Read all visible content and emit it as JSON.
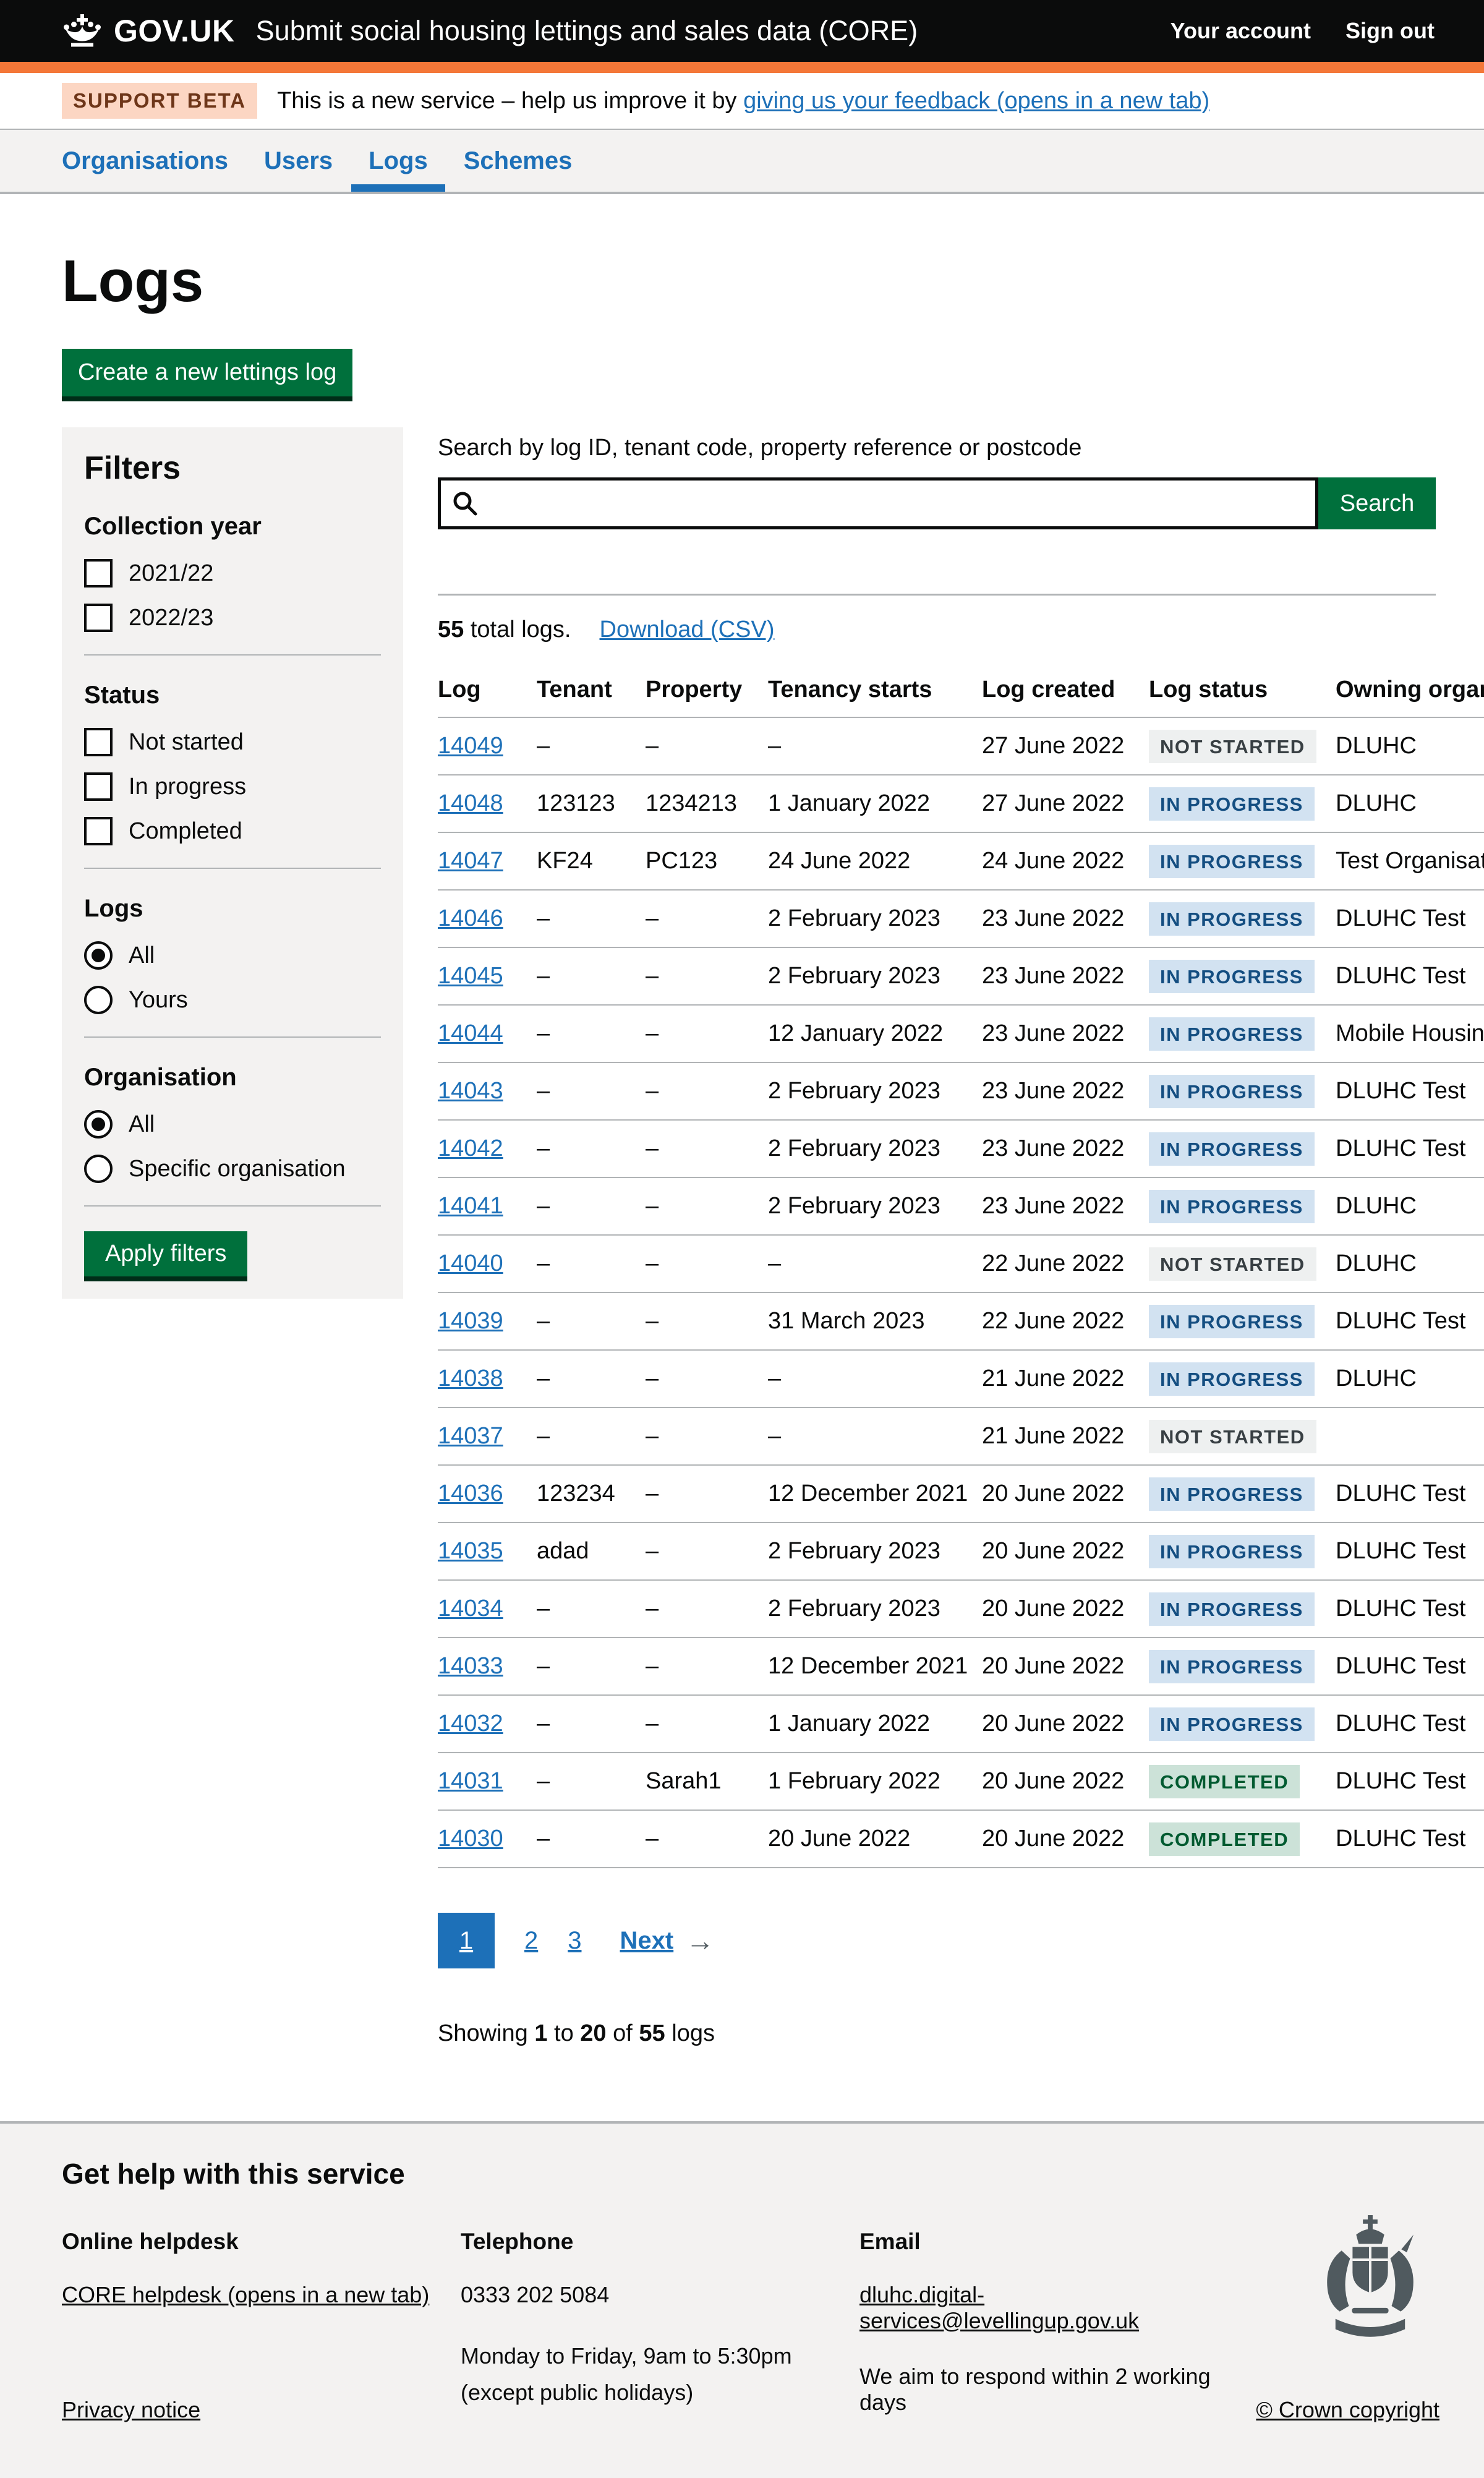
{
  "header": {
    "logo_text": "GOV.UK",
    "service_name": "Submit social housing lettings and sales data (CORE)",
    "account_link": "Your account",
    "signout_link": "Sign out"
  },
  "beta": {
    "tag": "SUPPORT BETA",
    "text": "This is a new service – help us improve it by ",
    "link": "giving us your feedback (opens in a new tab)"
  },
  "nav": {
    "items": [
      {
        "label": "Organisations",
        "active": false
      },
      {
        "label": "Users",
        "active": false
      },
      {
        "label": "Logs",
        "active": true
      },
      {
        "label": "Schemes",
        "active": false
      }
    ]
  },
  "page": {
    "title": "Logs",
    "create_button_label": "Create a new lettings log"
  },
  "filters": {
    "title": "Filters",
    "apply_button_label": "Apply filters",
    "groups": [
      {
        "label": "Collection year",
        "type": "checkbox",
        "options": [
          {
            "label": "2021/22",
            "checked": false
          },
          {
            "label": "2022/23",
            "checked": false
          }
        ]
      },
      {
        "label": "Status",
        "type": "checkbox",
        "options": [
          {
            "label": "Not started",
            "checked": false
          },
          {
            "label": "In progress",
            "checked": false
          },
          {
            "label": "Completed",
            "checked": false
          }
        ]
      },
      {
        "label": "Logs",
        "type": "radio",
        "options": [
          {
            "label": "All",
            "checked": true
          },
          {
            "label": "Yours",
            "checked": false
          }
        ]
      },
      {
        "label": "Organisation",
        "type": "radio",
        "options": [
          {
            "label": "All",
            "checked": true
          },
          {
            "label": "Specific organisation",
            "checked": false
          }
        ]
      }
    ]
  },
  "search": {
    "label": "Search by log ID, tenant code, property reference or postcode",
    "value": "",
    "button_label": "Search"
  },
  "results": {
    "count": "55",
    "count_suffix": " total logs.",
    "download_label": "Download (CSV)"
  },
  "table": {
    "columns": [
      "Log",
      "Tenant",
      "Property",
      "Tenancy starts",
      "Log created",
      "Log status",
      "Owning organisation"
    ],
    "rows": [
      {
        "log": "14049",
        "tenant": "–",
        "property": "–",
        "tenancy_starts": "–",
        "log_created": "27 June 2022",
        "status": "NOT STARTED",
        "status_kind": "grey",
        "owning_org": "DLUHC"
      },
      {
        "log": "14048",
        "tenant": "123123",
        "property": "1234213",
        "tenancy_starts": "1 January 2022",
        "log_created": "27 June 2022",
        "status": "IN PROGRESS",
        "status_kind": "blue",
        "owning_org": "DLUHC"
      },
      {
        "log": "14047",
        "tenant": "KF24",
        "property": "PC123",
        "tenancy_starts": "24 June 2022",
        "log_created": "24 June 2022",
        "status": "IN PROGRESS",
        "status_kind": "blue",
        "owning_org": "Test Organisation"
      },
      {
        "log": "14046",
        "tenant": "–",
        "property": "–",
        "tenancy_starts": "2 February 2023",
        "log_created": "23 June 2022",
        "status": "IN PROGRESS",
        "status_kind": "blue",
        "owning_org": "DLUHC Test"
      },
      {
        "log": "14045",
        "tenant": "–",
        "property": "–",
        "tenancy_starts": "2 February 2023",
        "log_created": "23 June 2022",
        "status": "IN PROGRESS",
        "status_kind": "blue",
        "owning_org": "DLUHC Test"
      },
      {
        "log": "14044",
        "tenant": "–",
        "property": "–",
        "tenancy_starts": "12 January 2022",
        "log_created": "23 June 2022",
        "status": "IN PROGRESS",
        "status_kind": "blue",
        "owning_org": "Mobile Housing"
      },
      {
        "log": "14043",
        "tenant": "–",
        "property": "–",
        "tenancy_starts": "2 February 2023",
        "log_created": "23 June 2022",
        "status": "IN PROGRESS",
        "status_kind": "blue",
        "owning_org": "DLUHC Test"
      },
      {
        "log": "14042",
        "tenant": "–",
        "property": "–",
        "tenancy_starts": "2 February 2023",
        "log_created": "23 June 2022",
        "status": "IN PROGRESS",
        "status_kind": "blue",
        "owning_org": "DLUHC Test"
      },
      {
        "log": "14041",
        "tenant": "–",
        "property": "–",
        "tenancy_starts": "2 February 2023",
        "log_created": "23 June 2022",
        "status": "IN PROGRESS",
        "status_kind": "blue",
        "owning_org": "DLUHC"
      },
      {
        "log": "14040",
        "tenant": "–",
        "property": "–",
        "tenancy_starts": "–",
        "log_created": "22 June 2022",
        "status": "NOT STARTED",
        "status_kind": "grey",
        "owning_org": "DLUHC"
      },
      {
        "log": "14039",
        "tenant": "–",
        "property": "–",
        "tenancy_starts": "31 March 2023",
        "log_created": "22 June 2022",
        "status": "IN PROGRESS",
        "status_kind": "blue",
        "owning_org": "DLUHC Test"
      },
      {
        "log": "14038",
        "tenant": "–",
        "property": "–",
        "tenancy_starts": "–",
        "log_created": "21 June 2022",
        "status": "IN PROGRESS",
        "status_kind": "blue",
        "owning_org": "DLUHC"
      },
      {
        "log": "14037",
        "tenant": "–",
        "property": "–",
        "tenancy_starts": "–",
        "log_created": "21 June 2022",
        "status": "NOT STARTED",
        "status_kind": "grey",
        "owning_org": ""
      },
      {
        "log": "14036",
        "tenant": "123234",
        "property": "–",
        "tenancy_starts": "12 December 2021",
        "log_created": "20 June 2022",
        "status": "IN PROGRESS",
        "status_kind": "blue",
        "owning_org": "DLUHC Test"
      },
      {
        "log": "14035",
        "tenant": "adad",
        "property": "–",
        "tenancy_starts": "2 February 2023",
        "log_created": "20 June 2022",
        "status": "IN PROGRESS",
        "status_kind": "blue",
        "owning_org": "DLUHC Test"
      },
      {
        "log": "14034",
        "tenant": "–",
        "property": "–",
        "tenancy_starts": "2 February 2023",
        "log_created": "20 June 2022",
        "status": "IN PROGRESS",
        "status_kind": "blue",
        "owning_org": "DLUHC Test"
      },
      {
        "log": "14033",
        "tenant": "–",
        "property": "–",
        "tenancy_starts": "12 December 2021",
        "log_created": "20 June 2022",
        "status": "IN PROGRESS",
        "status_kind": "blue",
        "owning_org": "DLUHC Test"
      },
      {
        "log": "14032",
        "tenant": "–",
        "property": "–",
        "tenancy_starts": "1 January 2022",
        "log_created": "20 June 2022",
        "status": "IN PROGRESS",
        "status_kind": "blue",
        "owning_org": "DLUHC Test"
      },
      {
        "log": "14031",
        "tenant": "–",
        "property": "Sarah1",
        "tenancy_starts": "1 February 2022",
        "log_created": "20 June 2022",
        "status": "COMPLETED",
        "status_kind": "green",
        "owning_org": "DLUHC Test"
      },
      {
        "log": "14030",
        "tenant": "–",
        "property": "–",
        "tenancy_starts": "20 June 2022",
        "log_created": "20 June 2022",
        "status": "COMPLETED",
        "status_kind": "green",
        "owning_org": "DLUHC Test"
      }
    ]
  },
  "pagination": {
    "current": "1",
    "others": [
      "2",
      "3"
    ],
    "next_label": "Next",
    "next_arrow": "→"
  },
  "showing": {
    "prefix": "Showing",
    "from": "1",
    "to_word": "to",
    "to": "20",
    "of_word": "of",
    "total": "55",
    "suffix": "logs"
  },
  "footer": {
    "heading": "Get help with this service",
    "helpdesk_heading": "Online helpdesk",
    "helpdesk_link": "CORE helpdesk (opens in a new tab)",
    "telephone_heading": "Telephone",
    "telephone_number": "0333 202 5084",
    "telephone_hours": "Monday to Friday, 9am to 5:30pm",
    "telephone_note": "(except public holidays)",
    "email_heading": "Email",
    "email_link": "dluhc.digital-services@levellingup.gov.uk",
    "email_note": "We aim to respond within 2 working days",
    "privacy_link": "Privacy notice",
    "copyright_link": "© Crown copyright"
  },
  "colors": {
    "black": "#0b0c0c",
    "brand_orange": "#f47738",
    "link_blue": "#1d70b8",
    "button_green": "#00703c",
    "button_shadow": "#002d18",
    "grey_border": "#b1b4b6",
    "panel_grey": "#f3f2f1",
    "mid_grey": "#505a5f",
    "tag_grey_bg": "#eef0f0",
    "tag_grey_text": "#383f43",
    "tag_blue_bg": "#d2e2f1",
    "tag_blue_text": "#144e81",
    "tag_green_bg": "#cce2d8",
    "tag_green_text": "#005a30",
    "beta_tag_bg": "#fcd6c3",
    "beta_tag_text": "#6e3619"
  }
}
